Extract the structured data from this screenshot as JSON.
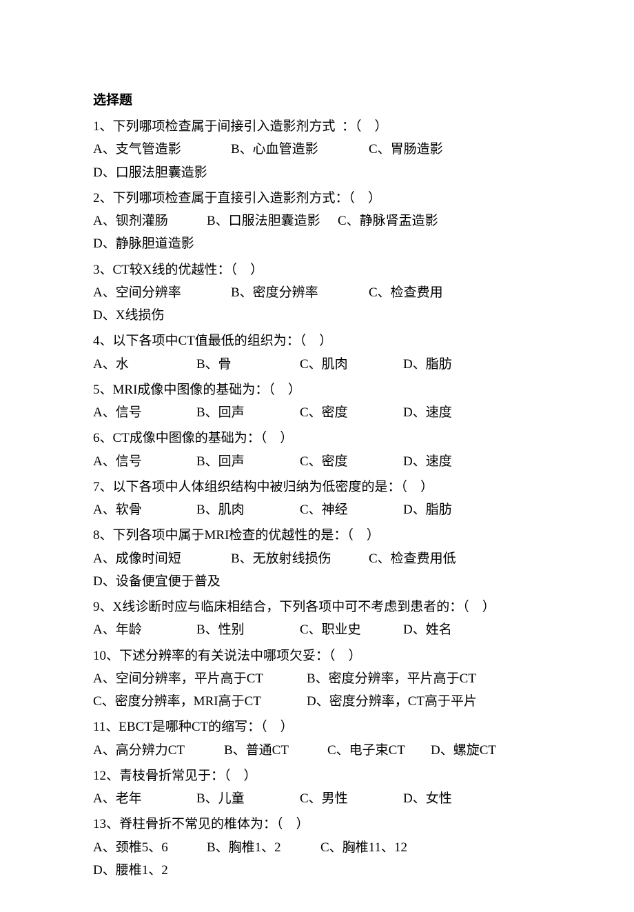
{
  "title": "选择题",
  "text_color": "#000000",
  "background_color": "#ffffff",
  "font_size": 19,
  "questions": [
    {
      "num": "1",
      "stem": "下列哪项检查属于间接引入造影剂方式  ：（    ）",
      "options": [
        {
          "label": "A、支气管造影",
          "cls": "w3"
        },
        {
          "label": "B、心血管造影",
          "cls": "w3"
        },
        {
          "label": "C、胃肠造影",
          "cls": "w3"
        },
        {
          "label": "D、口服法胆囊造影",
          "cls": "w3"
        }
      ],
      "rowbreak_after": 3
    },
    {
      "num": "2",
      "stem": "下列哪项检查属于直接引入造影剂方式：（    ）",
      "options": [
        {
          "label": "A、钡剂灌肠",
          "cls": "w2"
        },
        {
          "label": "B、口服法胆囊造影",
          "cls": "wmed"
        },
        {
          "label": "C、静脉肾盂造影",
          "cls": "w3"
        },
        {
          "label": "D、静脉胆道造影",
          "cls": "w3"
        }
      ],
      "rowbreak_after": 3
    },
    {
      "num": "3",
      "stem": "CT较X线的优越性：（    ）",
      "options": [
        {
          "label": "A、空间分辨率",
          "cls": "w3"
        },
        {
          "label": "B、密度分辨率",
          "cls": "w3"
        },
        {
          "label": "C、检查费用",
          "cls": "w3"
        },
        {
          "label": "D、X线损伤",
          "cls": "w3"
        }
      ],
      "rowbreak_after": 3
    },
    {
      "num": "4",
      "stem": "以下各项中CT值最低的组织为：（    ）",
      "options": [
        {
          "label": "A、水",
          "cls": "w4"
        },
        {
          "label": "B、骨",
          "cls": "w4"
        },
        {
          "label": "C、肌肉",
          "cls": "w4"
        },
        {
          "label": "D、脂肪",
          "cls": "w4"
        }
      ],
      "rowbreak_after": 99
    },
    {
      "num": "5",
      "stem": "MRI成像中图像的基础为：（    ）",
      "options": [
        {
          "label": "A、信号",
          "cls": "w4"
        },
        {
          "label": "B、回声",
          "cls": "w4"
        },
        {
          "label": "C、密度",
          "cls": "w4"
        },
        {
          "label": "D、速度",
          "cls": "w4"
        }
      ],
      "rowbreak_after": 99
    },
    {
      "num": "6",
      "stem": "CT成像中图像的基础为：（    ）",
      "options": [
        {
          "label": "A、信号",
          "cls": "w4"
        },
        {
          "label": "B、回声",
          "cls": "w4"
        },
        {
          "label": "C、密度",
          "cls": "w4"
        },
        {
          "label": "D、速度",
          "cls": "w4"
        }
      ],
      "rowbreak_after": 99
    },
    {
      "num": "7",
      "stem": "以下各项中人体组织结构中被归纳为低密度的是：（    ）",
      "options": [
        {
          "label": "A、软骨",
          "cls": "w4"
        },
        {
          "label": "B、肌肉",
          "cls": "w4"
        },
        {
          "label": "C、神经",
          "cls": "w4"
        },
        {
          "label": "D、脂肪",
          "cls": "w4"
        }
      ],
      "rowbreak_after": 99
    },
    {
      "num": "8",
      "stem": "下列各项中属于MRI检查的优越性的是：（    ）",
      "options": [
        {
          "label": "A、成像时间短",
          "cls": "w3"
        },
        {
          "label": "B、无放射线损伤",
          "cls": "w3"
        },
        {
          "label": "C、检查费用低",
          "cls": "w3"
        },
        {
          "label": "D、设备便宜便于普及",
          "cls": "w3"
        }
      ],
      "rowbreak_after": 3
    },
    {
      "num": "9",
      "stem": "X线诊断时应与临床相结合，下列各项中可不考虑到患者的：（    ）",
      "options": [
        {
          "label": "A、年龄",
          "cls": "w4"
        },
        {
          "label": "B、性别",
          "cls": "w4"
        },
        {
          "label": "C、职业史",
          "cls": "w4"
        },
        {
          "label": "D、姓名",
          "cls": "w4"
        }
      ],
      "rowbreak_after": 99
    },
    {
      "num": "10",
      "stem": "下述分辨率的有关说法中哪项欠妥：（    ）",
      "options": [
        {
          "label": "A、空间分辨率，平片高于CT",
          "cls": "wwide"
        },
        {
          "label": "B、密度分辨率，平片高于CT",
          "cls": "wwide"
        },
        {
          "label": "C、密度分辨率，MRI高于CT",
          "cls": "wwide"
        },
        {
          "label": "D、密度分辨率，CT高于平片",
          "cls": "wwide"
        }
      ],
      "rowbreak_after": 2
    },
    {
      "num": "11",
      "stem": "EBCT是哪种CT的缩写：（    ）",
      "options": [
        {
          "label": "A、高分辨力CT",
          "cls": "wmed"
        },
        {
          "label": "B、普通CT",
          "cls": "w4"
        },
        {
          "label": "C、电子束CT",
          "cls": "w4"
        },
        {
          "label": "D、螺旋CT",
          "cls": "w4"
        }
      ],
      "rowbreak_after": 99
    },
    {
      "num": "12",
      "stem": "青枝骨折常见于：（    ）",
      "options": [
        {
          "label": "A、老年",
          "cls": "w4"
        },
        {
          "label": "B、儿童",
          "cls": "w4"
        },
        {
          "label": "C、男性",
          "cls": "w4"
        },
        {
          "label": "D、女性",
          "cls": "w4"
        }
      ],
      "rowbreak_after": 99
    },
    {
      "num": "13",
      "stem": "脊柱骨折不常见的椎体为：（    ）",
      "options": [
        {
          "label": "A、颈椎5、6",
          "cls": "w2"
        },
        {
          "label": "B、胸椎1、2",
          "cls": "w2"
        },
        {
          "label": "C、胸椎11、12",
          "cls": "w2"
        },
        {
          "label": "D、腰椎1、2",
          "cls": "w2"
        }
      ],
      "rowbreak_after": 99
    }
  ]
}
